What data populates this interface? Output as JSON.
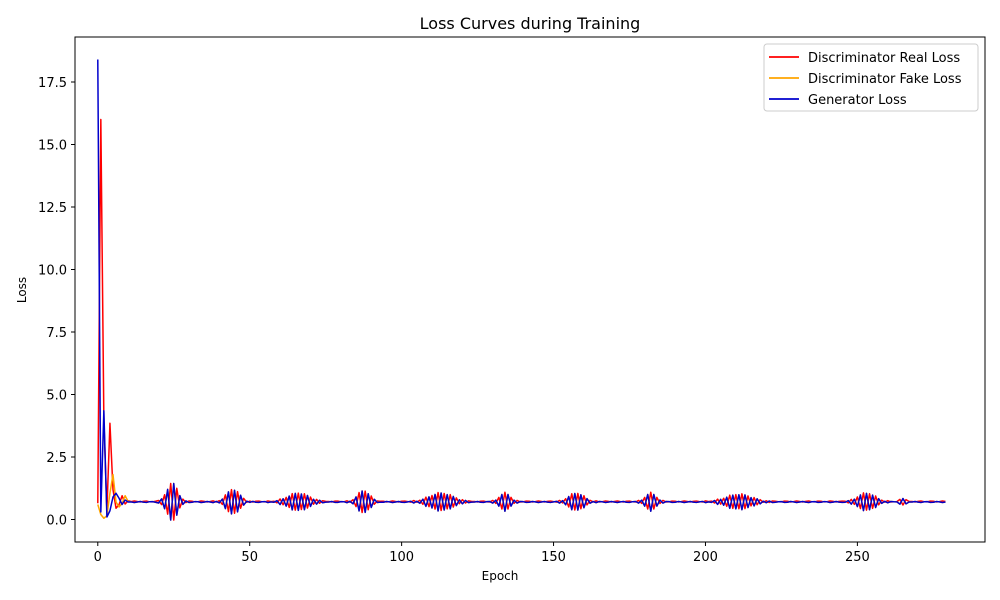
{
  "chart_data": {
    "type": "line",
    "title": "Loss Curves during Training",
    "xlabel": "Epoch",
    "ylabel": "Loss",
    "xlim": [
      -7.5,
      292
    ],
    "ylim": [
      -0.9,
      19.3
    ],
    "xticks": [
      0,
      50,
      100,
      150,
      200,
      250
    ],
    "yticks": [
      0.0,
      2.5,
      5.0,
      7.5,
      10.0,
      12.5,
      15.0,
      17.5
    ],
    "ytick_labels": [
      "0.0",
      "2.5",
      "5.0",
      "7.5",
      "10.0",
      "12.5",
      "15.0",
      "17.5"
    ],
    "grid": false,
    "legend_position": "top-right",
    "epochs": 279,
    "oscillation_bursts": [
      {
        "center": 24.5,
        "width": 2.5,
        "amp": 0.75
      },
      {
        "center": 44.5,
        "width": 3.0,
        "amp": 0.5
      },
      {
        "center": 66.0,
        "width": 5.0,
        "amp": 0.35
      },
      {
        "center": 87.5,
        "width": 2.8,
        "amp": 0.45
      },
      {
        "center": 113.0,
        "width": 5.5,
        "amp": 0.35
      },
      {
        "center": 134.0,
        "width": 2.5,
        "amp": 0.35
      },
      {
        "center": 157.5,
        "width": 3.5,
        "amp": 0.35
      },
      {
        "center": 182.0,
        "width": 2.5,
        "amp": 0.35
      },
      {
        "center": 211.0,
        "width": 6.0,
        "amp": 0.3
      },
      {
        "center": 253.0,
        "width": 4.0,
        "amp": 0.35
      },
      {
        "center": 265.0,
        "width": 1.5,
        "amp": 0.12
      }
    ],
    "series": [
      {
        "name": "Discriminator Real Loss",
        "color": "#ff0000",
        "baseline": 0.72,
        "start_values": [
          0.65,
          16.0,
          4.0,
          0.35,
          3.85,
          1.2,
          0.45,
          0.6,
          0.95,
          0.62,
          0.75
        ],
        "phase": 0.0
      },
      {
        "name": "Discriminator Fake Loss",
        "color": "#ffa500",
        "baseline": 0.7,
        "start_values": [
          0.6,
          0.2,
          0.05,
          0.15,
          1.05,
          1.8,
          0.7,
          0.5,
          0.65,
          0.95,
          0.72
        ],
        "phase": 3.14159
      },
      {
        "name": "Generator Loss",
        "color": "#0000cd",
        "baseline": 0.7,
        "start_values": [
          18.4,
          0.3,
          4.35,
          0.1,
          0.35,
          0.9,
          1.05,
          0.85,
          0.6,
          0.78,
          0.7
        ],
        "phase": 3.14159
      }
    ]
  }
}
